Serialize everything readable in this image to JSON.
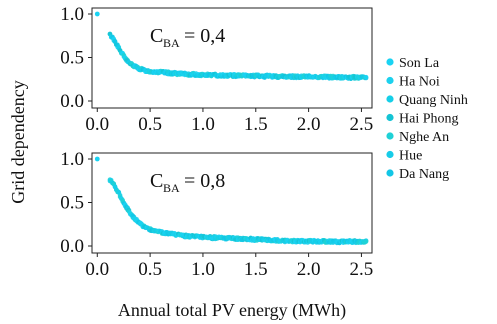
{
  "chart_data": {
    "type": "scatter",
    "ylabel": "Grid dependency",
    "xlabel": "Annual total PV energy (MWh)",
    "xlim": [
      0,
      2.55
    ],
    "ylim": [
      0,
      1.0
    ],
    "xticks": [
      "0.0",
      "0.5",
      "1.0",
      "1.5",
      "2.0",
      "2.5"
    ],
    "yticks": [
      "0.0",
      "0.5",
      "1.0"
    ],
    "legend_position": "right",
    "series": [
      {
        "name": "Son La",
        "color": "#19d3f3"
      },
      {
        "name": "Ha Noi",
        "color": "#1cd1ee"
      },
      {
        "name": "Quang Ninh",
        "color": "#15cfe8"
      },
      {
        "name": "Hai Phong",
        "color": "#14c4d4"
      },
      {
        "name": "Nghe An",
        "color": "#1fd1d6"
      },
      {
        "name": "Hue",
        "color": "#17cce8"
      },
      {
        "name": "Da Nang",
        "color": "#12c6e6"
      }
    ],
    "panels": [
      {
        "annotation_main": "C",
        "annotation_sub": "BA",
        "annotation_value": " = 0,4",
        "x": [
          0.0,
          0.12,
          0.15,
          0.18,
          0.22,
          0.26,
          0.3,
          0.35,
          0.4,
          0.45,
          0.5,
          0.6,
          0.7,
          0.8,
          0.9,
          1.0,
          1.2,
          1.4,
          1.6,
          1.8,
          2.0,
          2.2,
          2.4,
          2.55
        ],
        "y": [
          1.0,
          0.76,
          0.72,
          0.66,
          0.57,
          0.5,
          0.44,
          0.4,
          0.37,
          0.35,
          0.34,
          0.33,
          0.32,
          0.31,
          0.305,
          0.3,
          0.295,
          0.29,
          0.285,
          0.28,
          0.28,
          0.275,
          0.27,
          0.27
        ]
      },
      {
        "annotation_main": "C",
        "annotation_sub": "BA",
        "annotation_value": " = 0,8",
        "x": [
          0.0,
          0.12,
          0.15,
          0.18,
          0.22,
          0.26,
          0.3,
          0.35,
          0.4,
          0.45,
          0.5,
          0.6,
          0.7,
          0.8,
          0.9,
          1.0,
          1.2,
          1.4,
          1.6,
          1.8,
          2.0,
          2.2,
          2.4,
          2.55
        ],
        "y": [
          1.0,
          0.76,
          0.72,
          0.66,
          0.57,
          0.48,
          0.4,
          0.32,
          0.26,
          0.22,
          0.19,
          0.16,
          0.14,
          0.12,
          0.11,
          0.1,
          0.09,
          0.08,
          0.07,
          0.06,
          0.055,
          0.05,
          0.05,
          0.05
        ]
      }
    ]
  }
}
